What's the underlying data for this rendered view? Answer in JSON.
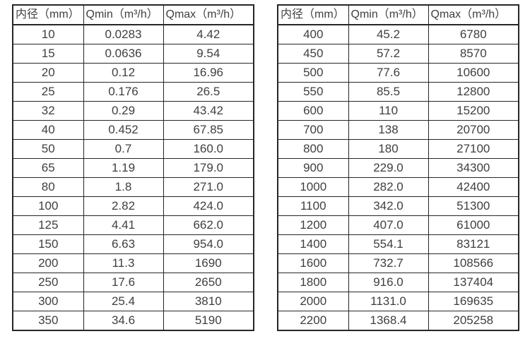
{
  "page": {
    "background_color": "#ffffff",
    "text_color": "#3f3f3f",
    "border_color": "#262626"
  },
  "tables": [
    {
      "name": "flow-range-table-small-diameters",
      "headers": [
        "内径（mm）",
        "Qmin（m³/h）",
        "Qmax（m³/h）"
      ],
      "rows": [
        [
          "10",
          "0.0283",
          "4.42"
        ],
        [
          "15",
          "0.0636",
          "9.54"
        ],
        [
          "20",
          "0.12",
          "16.96"
        ],
        [
          "25",
          "0.176",
          "26.5"
        ],
        [
          "32",
          "0.29",
          "43.42"
        ],
        [
          "40",
          "0.452",
          "67.85"
        ],
        [
          "50",
          "0.7",
          "160.0"
        ],
        [
          "65",
          "1.19",
          "179.0"
        ],
        [
          "80",
          "1.8",
          "271.0"
        ],
        [
          "100",
          "2.82",
          "424.0"
        ],
        [
          "125",
          "4.41",
          "662.0"
        ],
        [
          "150",
          "6.63",
          "954.0"
        ],
        [
          "200",
          "11.3",
          "1690"
        ],
        [
          "250",
          "17.6",
          "2650"
        ],
        [
          "300",
          "25.4",
          "3810"
        ],
        [
          "350",
          "34.6",
          "5190"
        ]
      ]
    },
    {
      "name": "flow-range-table-large-diameters",
      "headers": [
        "内径（mm）",
        "Qmin（m³/h）",
        "Qmax（m³/h）"
      ],
      "rows": [
        [
          "400",
          "45.2",
          "6780"
        ],
        [
          "450",
          "57.2",
          "8570"
        ],
        [
          "500",
          "77.6",
          "10600"
        ],
        [
          "550",
          "85.5",
          "12800"
        ],
        [
          "600",
          "110",
          "15200"
        ],
        [
          "700",
          "138",
          "20700"
        ],
        [
          "800",
          "180",
          "27100"
        ],
        [
          "900",
          "229.0",
          "34300"
        ],
        [
          "1000",
          "282.0",
          "42400"
        ],
        [
          "1100",
          "342.0",
          "51300"
        ],
        [
          "1200",
          "407.0",
          "61000"
        ],
        [
          "1400",
          "554.1",
          "83121"
        ],
        [
          "1600",
          "732.7",
          "108566"
        ],
        [
          "1800",
          "916.0",
          "137404"
        ],
        [
          "2000",
          "1131.0",
          "169635"
        ],
        [
          "2200",
          "1368.4",
          "205258"
        ]
      ]
    }
  ]
}
